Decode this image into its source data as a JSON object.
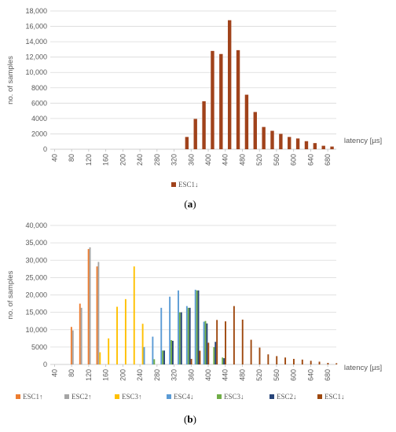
{
  "chart_data": [
    {
      "type": "bar",
      "caption": "(a)",
      "ylabel": "no. of samples",
      "xlabel": "latency [µs]",
      "ylim": [
        0,
        18000
      ],
      "yticks": [
        0,
        2000,
        4000,
        6000,
        8000,
        10000,
        12000,
        14000,
        16000,
        18000
      ],
      "ytick_labels": [
        "0",
        "2000",
        "4000",
        "6000",
        "8000",
        "10,000",
        "12,000",
        "14,000",
        "16,000",
        "18,000"
      ],
      "xticks": [
        40,
        80,
        120,
        160,
        200,
        240,
        280,
        320,
        360,
        400,
        440,
        480,
        520,
        560,
        600,
        640,
        680
      ],
      "x_range": [
        30,
        700
      ],
      "grid": "horizontal",
      "legend_position": "bottom",
      "series": [
        {
          "name": "ESC1↓",
          "color": "#a0421b",
          "x": [
            350,
            370,
            390,
            410,
            430,
            450,
            470,
            490,
            510,
            530,
            550,
            570,
            590,
            610,
            630,
            650,
            670,
            690
          ],
          "values": [
            1600,
            3950,
            6250,
            12800,
            12400,
            16800,
            12900,
            7100,
            4850,
            2900,
            2400,
            2000,
            1600,
            1400,
            1050,
            800,
            450,
            350
          ]
        }
      ]
    },
    {
      "type": "bar",
      "caption": "(b)",
      "ylabel": "no. of samples",
      "xlabel": "latency [µs]",
      "ylim": [
        0,
        40000
      ],
      "yticks": [
        0,
        5000,
        10000,
        15000,
        20000,
        25000,
        30000,
        35000,
        40000
      ],
      "ytick_labels": [
        "0",
        "5000",
        "10,000",
        "15,000",
        "20,000",
        "25,000",
        "30,000",
        "35,000",
        "40,000"
      ],
      "xticks": [
        40,
        80,
        120,
        160,
        200,
        240,
        280,
        320,
        360,
        400,
        440,
        480,
        520,
        560,
        600,
        640,
        680
      ],
      "x_range": [
        30,
        700
      ],
      "grid": "horizontal",
      "legend_position": "bottom",
      "series": [
        {
          "name": "ESC1↑",
          "color": "#ed7d31",
          "x": [
            90,
            110,
            130,
            150
          ],
          "values": [
            10800,
            17500,
            33200,
            28200
          ]
        },
        {
          "name": "ESC2↑",
          "color": "#a5a5a5",
          "x": [
            90,
            110,
            130,
            150
          ],
          "values": [
            9800,
            16300,
            33700,
            29500
          ]
        },
        {
          "name": "ESC3↑",
          "color": "#ffc000",
          "x": [
            150,
            170,
            190,
            210,
            230,
            250
          ],
          "values": [
            3500,
            7500,
            16600,
            18800,
            28200,
            11700
          ]
        },
        {
          "name": "ESC4↓",
          "color": "#5b9bd5",
          "x": [
            250,
            270,
            290,
            310,
            330,
            350,
            370,
            390
          ],
          "values": [
            5000,
            8000,
            16300,
            19500,
            21300,
            16800,
            21500,
            12300
          ]
        },
        {
          "name": "ESC3↓",
          "color": "#70ad47",
          "x": [
            270,
            290,
            310,
            330,
            350,
            370,
            390,
            410,
            430
          ],
          "values": [
            1500,
            4000,
            7000,
            15000,
            16300,
            21300,
            12500,
            5000,
            2000
          ]
        },
        {
          "name": "ESC2↓",
          "color": "#264478",
          "x": [
            290,
            310,
            330,
            350,
            370,
            390,
            410,
            430
          ],
          "values": [
            4000,
            6800,
            15000,
            16300,
            21300,
            11800,
            6500,
            1800
          ]
        },
        {
          "name": "ESC1↓",
          "color": "#9e480e",
          "x": [
            350,
            370,
            390,
            410,
            430,
            450,
            470,
            490,
            510,
            530,
            550,
            570,
            590,
            610,
            630,
            650,
            670,
            690
          ],
          "values": [
            1600,
            3950,
            6250,
            12800,
            12400,
            16800,
            12900,
            7100,
            4850,
            2900,
            2400,
            2000,
            1600,
            1400,
            1050,
            800,
            450,
            350
          ]
        }
      ]
    }
  ]
}
